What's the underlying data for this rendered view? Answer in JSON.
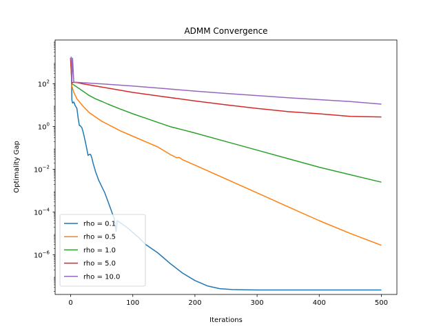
{
  "chart_data": {
    "type": "line",
    "title": "ADMM Convergence",
    "xlabel": "Iterations",
    "ylabel": "Optimality Gap",
    "xlim": [
      -25,
      525
    ],
    "ylim_log10": [
      -7.85,
      4.05
    ],
    "yscale": "log",
    "grid": false,
    "legend_position": "lower-left",
    "x_ticks": [
      0,
      100,
      200,
      300,
      400,
      500
    ],
    "x_tick_labels": [
      "0",
      "100",
      "200",
      "300",
      "400",
      "500"
    ],
    "y_ticks_log10": [
      2,
      0,
      -2,
      -4,
      -6
    ],
    "y_tick_labels": [
      "10^2",
      "10^0",
      "10^-2",
      "10^-4",
      "10^-6"
    ],
    "series": [
      {
        "name": "rho = 0.1",
        "color": "#1f77b4",
        "x": [
          0,
          1,
          2,
          3,
          5,
          7,
          10,
          12,
          14,
          15,
          18,
          20,
          22,
          25,
          28,
          30,
          32,
          34,
          36,
          40,
          45,
          50,
          55,
          60,
          65,
          70,
          73,
          75,
          80,
          90,
          100,
          110,
          120,
          140,
          160,
          180,
          200,
          220,
          240,
          260,
          280,
          300,
          350,
          400,
          450,
          500
        ],
        "y_log10": [
          3.2,
          3.05,
          1.25,
          1.1,
          1.15,
          1.0,
          0.85,
          0.4,
          0.05,
          0.05,
          -0.05,
          -0.25,
          -0.5,
          -0.9,
          -1.35,
          -1.3,
          -1.3,
          -1.45,
          -1.7,
          -2.1,
          -2.5,
          -2.8,
          -3.1,
          -3.5,
          -3.9,
          -4.3,
          -4.9,
          -4.4,
          -4.5,
          -4.7,
          -4.95,
          -5.2,
          -5.5,
          -5.9,
          -6.4,
          -6.85,
          -7.2,
          -7.45,
          -7.58,
          -7.62,
          -7.63,
          -7.64,
          -7.64,
          -7.64,
          -7.64,
          -7.64
        ]
      },
      {
        "name": "rho = 0.5",
        "color": "#ff7f0e",
        "x": [
          0,
          2,
          5,
          10,
          20,
          30,
          40,
          50,
          60,
          70,
          80,
          100,
          120,
          140,
          160,
          170,
          175,
          180,
          200,
          250,
          300,
          350,
          400,
          450,
          500
        ],
        "y_log10": [
          3.2,
          1.9,
          1.6,
          1.3,
          0.95,
          0.65,
          0.45,
          0.25,
          0.1,
          -0.05,
          -0.2,
          -0.45,
          -0.7,
          -0.95,
          -1.3,
          -1.45,
          -1.45,
          -1.55,
          -1.8,
          -2.45,
          -3.1,
          -3.75,
          -4.4,
          -5.0,
          -5.55
        ]
      },
      {
        "name": "rho = 1.0",
        "color": "#2ca02c",
        "x": [
          0,
          2,
          5,
          10,
          20,
          30,
          40,
          50,
          60,
          80,
          100,
          120,
          140,
          160,
          180,
          200,
          250,
          300,
          350,
          400,
          450,
          500
        ],
        "y_log10": [
          3.2,
          2.0,
          1.95,
          1.85,
          1.65,
          1.45,
          1.3,
          1.18,
          1.05,
          0.82,
          0.6,
          0.4,
          0.2,
          0.0,
          -0.15,
          -0.3,
          -0.7,
          -1.1,
          -1.5,
          -1.9,
          -2.25,
          -2.6
        ]
      },
      {
        "name": "rho = 5.0",
        "color": "#d62728",
        "x": [
          0,
          2,
          5,
          10,
          20,
          50,
          100,
          150,
          200,
          250,
          300,
          350,
          400,
          450,
          500
        ],
        "y_log10": [
          3.2,
          2.05,
          2.07,
          2.06,
          2.0,
          1.85,
          1.6,
          1.4,
          1.2,
          1.02,
          0.85,
          0.7,
          0.6,
          0.48,
          0.45
        ]
      },
      {
        "name": "rho = 10.0",
        "color": "#9467bd",
        "x": [
          0,
          1,
          2,
          3,
          5,
          10,
          20,
          50,
          100,
          150,
          200,
          250,
          300,
          350,
          400,
          450,
          500
        ],
        "y_log10": [
          3.1,
          3.25,
          2.1,
          3.2,
          2.08,
          2.07,
          2.05,
          2.0,
          1.9,
          1.78,
          1.66,
          1.55,
          1.45,
          1.35,
          1.26,
          1.17,
          1.05
        ]
      }
    ]
  }
}
